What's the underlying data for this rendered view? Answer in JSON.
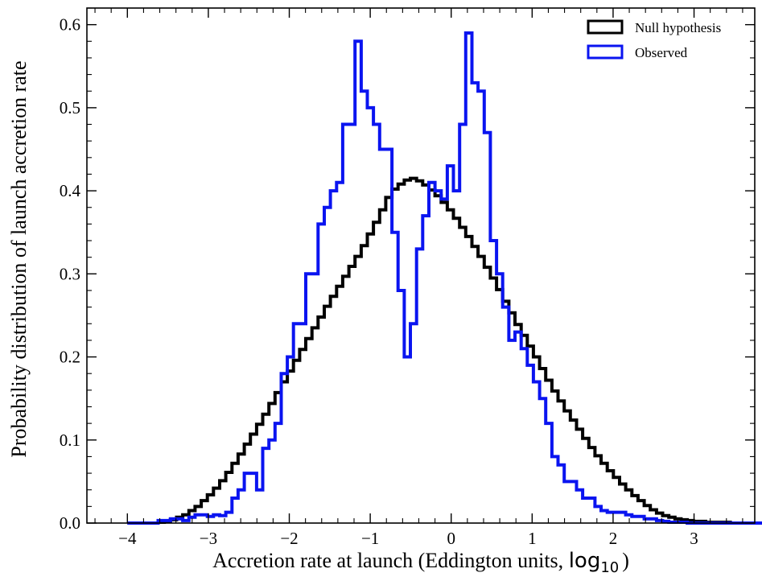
{
  "chart_data": {
    "type": "histogram-step",
    "title": "",
    "xlabel_main": "Accretion rate at launch (Eddington units, ",
    "xlabel_log": "log",
    "xlabel_sub": "10",
    "xlabel_close": ")",
    "ylabel": "Probability distribution of launch accretion rate",
    "xlim": [
      -4.5,
      3.75
    ],
    "ylim": [
      0.0,
      0.62
    ],
    "xticks": [
      -4,
      -3,
      -2,
      -1,
      0,
      1,
      2,
      3
    ],
    "xtick_labels": [
      "−4",
      "−3",
      "−2",
      "−1",
      "0",
      "1",
      "2",
      "3"
    ],
    "yticks": [
      0.0,
      0.1,
      0.2,
      0.3,
      0.4,
      0.5,
      0.6
    ],
    "ytick_labels": [
      "0.0",
      "0.1",
      "0.2",
      "0.3",
      "0.4",
      "0.5",
      "0.6"
    ],
    "legend_position": "top-right",
    "bin_start": -4.0,
    "bin_width": 0.076,
    "series": [
      {
        "name": "Null hypothesis",
        "color": "#000000",
        "values": [
          0.0,
          0.0,
          0.0,
          0.0,
          0.0,
          0.001,
          0.002,
          0.004,
          0.007,
          0.01,
          0.015,
          0.02,
          0.027,
          0.034,
          0.042,
          0.051,
          0.061,
          0.072,
          0.083,
          0.095,
          0.107,
          0.119,
          0.131,
          0.144,
          0.157,
          0.17,
          0.183,
          0.196,
          0.209,
          0.222,
          0.235,
          0.248,
          0.261,
          0.273,
          0.285,
          0.297,
          0.309,
          0.321,
          0.334,
          0.348,
          0.362,
          0.377,
          0.392,
          0.402,
          0.408,
          0.413,
          0.415,
          0.412,
          0.407,
          0.401,
          0.394,
          0.386,
          0.377,
          0.367,
          0.356,
          0.345,
          0.333,
          0.321,
          0.308,
          0.295,
          0.281,
          0.267,
          0.253,
          0.239,
          0.226,
          0.213,
          0.2,
          0.186,
          0.172,
          0.159,
          0.147,
          0.135,
          0.124,
          0.113,
          0.102,
          0.091,
          0.081,
          0.072,
          0.063,
          0.055,
          0.047,
          0.04,
          0.033,
          0.027,
          0.021,
          0.016,
          0.012,
          0.009,
          0.007,
          0.005,
          0.004,
          0.003,
          0.002,
          0.002,
          0.001,
          0.001,
          0.001,
          0.001,
          0.0,
          0.0,
          0.0,
          0.0,
          0.0,
          0.0,
          0.0,
          0.0,
          0.0,
          0.0
        ]
      },
      {
        "name": "Observed",
        "color": "#0a14f0",
        "values": [
          0.0,
          0.0,
          0.0,
          0.0,
          0.0,
          0.003,
          0.003,
          0.005,
          0.005,
          0.003,
          0.007,
          0.01,
          0.01,
          0.008,
          0.01,
          0.009,
          0.013,
          0.03,
          0.04,
          0.06,
          0.06,
          0.04,
          0.09,
          0.1,
          0.12,
          0.18,
          0.2,
          0.24,
          0.24,
          0.3,
          0.3,
          0.36,
          0.38,
          0.4,
          0.41,
          0.48,
          0.48,
          0.58,
          0.52,
          0.5,
          0.48,
          0.45,
          0.45,
          0.35,
          0.28,
          0.2,
          0.24,
          0.33,
          0.37,
          0.41,
          0.4,
          0.39,
          0.43,
          0.4,
          0.48,
          0.59,
          0.53,
          0.52,
          0.47,
          0.34,
          0.3,
          0.26,
          0.22,
          0.23,
          0.21,
          0.19,
          0.17,
          0.15,
          0.12,
          0.08,
          0.07,
          0.05,
          0.05,
          0.04,
          0.03,
          0.03,
          0.02,
          0.015,
          0.013,
          0.013,
          0.013,
          0.01,
          0.008,
          0.008,
          0.005,
          0.005,
          0.003,
          0.002,
          0.001,
          0.001,
          0.001,
          0.0,
          0.0,
          0.0,
          0.0,
          0.0,
          0.0,
          0.0,
          0.0,
          0.0,
          0.0,
          0.0,
          0.0,
          0.0,
          0.0,
          0.0,
          0.0,
          0.0
        ]
      }
    ]
  }
}
